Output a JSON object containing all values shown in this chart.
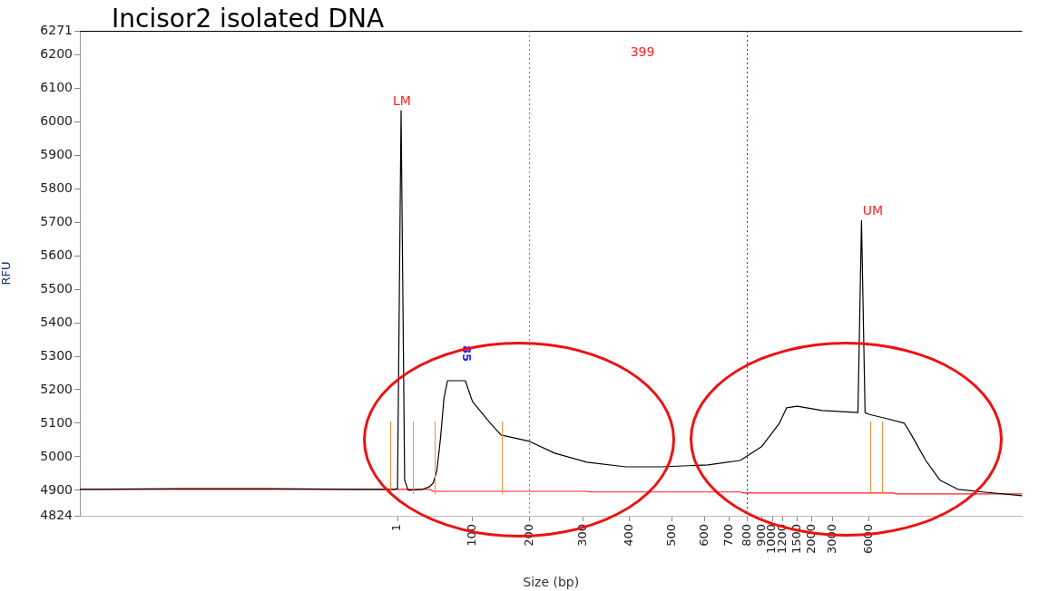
{
  "chart_data": {
    "type": "line",
    "title": "Incisor2 isolated DNA",
    "xlabel": "Size (bp)",
    "ylabel": "RFU",
    "categories": [
      null,
      null,
      null,
      null,
      null,
      null,
      null,
      null,
      null,
      null,
      null,
      null,
      null,
      null,
      null,
      null,
      null,
      null,
      null,
      null,
      null,
      null,
      null,
      null,
      null,
      null,
      null,
      null,
      null,
      null,
      null,
      null,
      null,
      null,
      null,
      null,
      null,
      null,
      null,
      null,
      null,
      null,
      null,
      null,
      null,
      null,
      null,
      null,
      null,
      null,
      null,
      null,
      null,
      null,
      null,
      null,
      null,
      null,
      null,
      null,
      null,
      null,
      null,
      null,
      null,
      null,
      null,
      null,
      null,
      null,
      null,
      null,
      null,
      null,
      null,
      null,
      null,
      null,
      null,
      null,
      null,
      null,
      null,
      null,
      null,
      null,
      null,
      null,
      null,
      "1",
      null,
      null,
      null,
      null,
      null,
      null,
      null,
      null,
      null,
      null,
      null,
      null,
      null,
      null,
      null,
      null,
      null,
      null,
      null,
      null,
      "100",
      null,
      null,
      null,
      null,
      null,
      null,
      null,
      null,
      null,
      null,
      null,
      null,
      null,
      null,
      null,
      "200",
      null,
      null,
      null,
      null,
      null,
      null,
      null,
      null,
      null,
      null,
      null,
      null,
      null,
      null,
      "300",
      null,
      null,
      null,
      null,
      null,
      null,
      null,
      null,
      null,
      null,
      null,
      null,
      "400",
      null,
      null,
      null,
      null,
      null,
      null,
      null,
      null,
      null,
      null,
      null,
      "500",
      null,
      null,
      null,
      null,
      null,
      null,
      null,
      null,
      "600",
      null,
      null,
      null,
      null,
      null,
      null,
      "700",
      null,
      null,
      null,
      null,
      "800",
      null,
      null,
      null,
      "900",
      null,
      null,
      "1000",
      null,
      null,
      "1200",
      null,
      null,
      null,
      "1500",
      null,
      null,
      null,
      "2000",
      null,
      null,
      null,
      null,
      null,
      "3000",
      null,
      null,
      null,
      null,
      null,
      null,
      null,
      null,
      null,
      "6000",
      null,
      null,
      null,
      null,
      null,
      null,
      null,
      null,
      null,
      null,
      null,
      null,
      null,
      null,
      null,
      null,
      null,
      null,
      null,
      null,
      null,
      null,
      null,
      null,
      null,
      null,
      null,
      null,
      null,
      null,
      null,
      null,
      null,
      null,
      null,
      null,
      null,
      null,
      null,
      null,
      null,
      null,
      null
    ],
    "ylim": [
      4824,
      6271
    ],
    "yticks": [
      4824,
      4900,
      5000,
      5100,
      5200,
      5300,
      5400,
      5500,
      5600,
      5700,
      5800,
      5900,
      6000,
      6100,
      6200,
      6271
    ],
    "grid": false,
    "legend": false,
    "marker": "none",
    "line_style": "solid",
    "series": [
      {
        "color": "#000000",
        "values": [
          4903,
          null,
          null,
          null,
          null,
          null,
          null,
          null,
          null,
          null,
          null,
          null,
          null,
          null,
          null,
          null,
          null,
          null,
          null,
          null,
          null,
          null,
          null,
          null,
          null,
          null,
          null,
          null,
          4905,
          null,
          null,
          null,
          null,
          null,
          null,
          null,
          null,
          null,
          null,
          null,
          null,
          null,
          null,
          null,
          null,
          null,
          null,
          null,
          null,
          null,
          null,
          null,
          null,
          4905,
          null,
          null,
          null,
          null,
          null,
          null,
          null,
          null,
          null,
          null,
          null,
          null,
          null,
          null,
          null,
          null,
          null,
          null,
          null,
          null,
          null,
          null,
          null,
          null,
          4903,
          null,
          null,
          null,
          null,
          null,
          null,
          null,
          null,
          null,
          4903,
          4905,
          6033,
          4930,
          4900,
          null,
          null,
          null,
          4903,
          null,
          4911,
          4922,
          4957,
          5050,
          5173,
          5227,
          5227,
          null,
          null,
          null,
          5227,
          null,
          5165,
          null,
          null,
          null,
          null,
          5100,
          null,
          null,
          5065,
          null,
          null,
          null,
          null,
          null,
          null,
          null,
          5046,
          null,
          null,
          null,
          null,
          null,
          null,
          5011,
          null,
          null,
          null,
          null,
          null,
          null,
          null,
          null,
          4984,
          null,
          null,
          null,
          null,
          null,
          null,
          null,
          null,
          null,
          null,
          4970,
          null,
          null,
          null,
          null,
          null,
          null,
          null,
          null,
          null,
          4970,
          null,
          null,
          null,
          null,
          null,
          null,
          null,
          null,
          null,
          null,
          null,
          null,
          4976,
          null,
          null,
          null,
          null,
          null,
          null,
          null,
          null,
          4989,
          null,
          null,
          null,
          null,
          null,
          5030,
          null,
          null,
          null,
          null,
          5100,
          null,
          5146,
          null,
          null,
          5151,
          null,
          null,
          null,
          null,
          null,
          null,
          5138,
          null,
          null,
          null,
          null,
          null,
          null,
          null,
          null,
          null,
          5132,
          5705,
          5132,
          5127,
          null,
          null,
          null,
          null,
          5114,
          null,
          null,
          null,
          null,
          5100,
          null,
          5065,
          null,
          null,
          null,
          4989,
          null,
          null,
          null,
          4930,
          null,
          null,
          null,
          null,
          4903,
          null,
          null,
          null,
          null,
          null,
          null,
          4895,
          null,
          null,
          null,
          null,
          null,
          null,
          null,
          null,
          null,
          null,
          4884
        ]
      },
      {
        "color": "#ff2020",
        "values": [
          4903,
          null,
          null,
          null,
          null,
          null,
          null,
          null,
          null,
          null,
          null,
          null,
          null,
          null,
          null,
          null,
          null,
          null,
          null,
          null,
          null,
          null,
          null,
          null,
          null,
          null,
          null,
          null,
          null,
          null,
          null,
          null,
          null,
          null,
          null,
          null,
          null,
          null,
          null,
          null,
          null,
          null,
          null,
          null,
          null,
          null,
          null,
          null,
          null,
          null,
          null,
          null,
          null,
          null,
          null,
          null,
          null,
          null,
          null,
          null,
          null,
          null,
          null,
          null,
          null,
          null,
          null,
          null,
          null,
          null,
          null,
          null,
          null,
          null,
          null,
          null,
          null,
          null,
          null,
          null,
          null,
          null,
          null,
          null,
          null,
          null,
          null,
          null,
          null,
          null,
          null,
          null,
          null,
          null,
          null,
          null,
          null,
          null,
          4903,
          4897,
          null,
          null,
          null,
          null,
          null,
          null,
          null,
          null,
          null,
          null,
          null,
          null,
          null,
          null,
          null,
          null,
          null,
          null,
          null,
          null,
          null,
          null,
          null,
          null,
          null,
          null,
          null,
          null,
          null,
          null,
          null,
          null,
          null,
          null,
          null,
          null,
          null,
          null,
          null,
          null,
          null,
          null,
          4897,
          4895,
          null,
          null,
          null,
          null,
          null,
          null,
          null,
          null,
          null,
          null,
          null,
          null,
          null,
          null,
          null,
          null,
          null,
          null,
          null,
          null,
          null,
          null,
          null,
          null,
          null,
          null,
          null,
          null,
          null,
          null,
          null,
          null,
          null,
          null,
          null,
          null,
          null,
          null,
          null,
          null,
          null,
          4895,
          4892,
          null,
          null,
          null,
          null,
          null,
          null,
          null,
          null,
          null,
          null,
          null,
          null,
          null,
          null,
          null,
          null,
          null,
          null,
          null,
          null,
          null,
          null,
          null,
          null,
          null,
          null,
          null,
          null,
          null,
          null,
          null,
          null,
          null,
          null,
          null,
          null,
          null,
          null,
          null,
          null,
          null,
          4892,
          4889,
          null,
          null,
          null,
          null,
          null,
          null,
          null,
          null,
          null,
          null,
          null,
          null,
          null,
          null,
          null,
          null,
          null,
          null,
          null,
          null,
          null,
          null,
          null,
          null,
          null,
          null,
          null,
          null,
          null,
          null,
          null,
          null,
          null,
          null,
          4889
        ]
      }
    ],
    "ref_lines": [
      {
        "axis": "x",
        "value": "200",
        "color": "#ff4040",
        "line_style": "dotted"
      },
      {
        "axis": "x",
        "value": "800",
        "color": "#c00000",
        "line_style": "dotted"
      }
    ],
    "annotations": [
      "399",
      "LM",
      "UM",
      "85"
    ]
  }
}
